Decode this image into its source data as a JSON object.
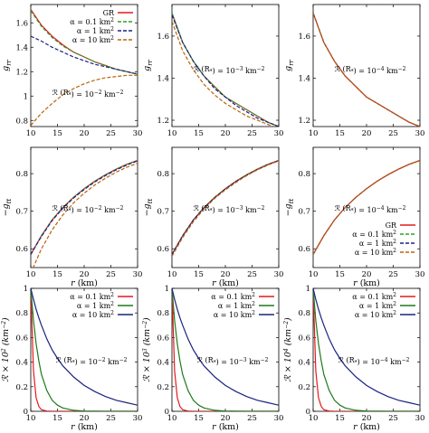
{
  "colors": {
    "GR": "#e41a1c",
    "alpha_0.1": "#2e9e2e",
    "alpha_1": "#1a237e",
    "alpha_10": "#b8650b",
    "bottom_0.1": "#e41a1c",
    "bottom_1": "#1b7a1b",
    "bottom_10": "#1a237e"
  },
  "chart_data": [
    {
      "type": "line",
      "row": 0,
      "col": 0,
      "xlabel": "",
      "ylabel": "g_rr",
      "xlim": [
        10,
        30
      ],
      "ylim": [
        0.75,
        1.75
      ],
      "xticks": [
        "10",
        "15",
        "20",
        "25",
        "30"
      ],
      "yticks": [
        {
          "v": 0.8,
          "l": "0.8"
        },
        {
          "v": 1.0,
          "l": "1"
        },
        {
          "v": 1.2,
          "l": "1.2"
        },
        {
          "v": 1.4,
          "l": "1.4"
        },
        {
          "v": 1.6,
          "l": "1.6"
        }
      ],
      "annotation": "R(R*) = 10^-2 km^-2",
      "legend": [
        "GR",
        "α = 0.1 km²",
        "α = 1 km²",
        "α = 10 km²"
      ],
      "legend_position": "top-right",
      "x": [
        10,
        12,
        14,
        16,
        18,
        20,
        22,
        24,
        26,
        28,
        30
      ],
      "series": [
        {
          "name": "GR",
          "style": "solid",
          "values": [
            1.71,
            1.58,
            1.49,
            1.42,
            1.36,
            1.32,
            1.28,
            1.25,
            1.22,
            1.2,
            1.18
          ]
        },
        {
          "name": "α = 0.1 km²",
          "style": "dashed",
          "values": [
            1.7,
            1.57,
            1.48,
            1.41,
            1.36,
            1.32,
            1.28,
            1.25,
            1.22,
            1.2,
            1.18
          ]
        },
        {
          "name": "α = 1 km²",
          "style": "dashed",
          "values": [
            1.49,
            1.45,
            1.4,
            1.36,
            1.32,
            1.29,
            1.26,
            1.24,
            1.22,
            1.2,
            1.18
          ]
        },
        {
          "name": "α = 10 km²",
          "style": "dashed",
          "values": [
            0.76,
            0.86,
            0.94,
            1.01,
            1.06,
            1.1,
            1.13,
            1.15,
            1.16,
            1.17,
            1.17
          ]
        }
      ]
    },
    {
      "type": "line",
      "row": 0,
      "col": 1,
      "xlabel": "",
      "ylabel": "g_rr",
      "xlim": [
        10,
        30
      ],
      "ylim": [
        1.17,
        1.75
      ],
      "xticks": [
        "10",
        "15",
        "20",
        "25",
        "30"
      ],
      "yticks": [
        {
          "v": 1.2,
          "l": "1.2"
        },
        {
          "v": 1.4,
          "l": "1.4"
        },
        {
          "v": 1.6,
          "l": "1.6"
        }
      ],
      "annotation": "R(R*) = 10^-3 km^-2",
      "x": [
        10,
        12,
        14,
        16,
        18,
        20,
        22,
        24,
        26,
        28,
        30
      ],
      "series": [
        {
          "name": "GR",
          "style": "solid",
          "values": [
            1.71,
            1.57,
            1.48,
            1.41,
            1.36,
            1.31,
            1.28,
            1.25,
            1.22,
            1.19,
            1.17
          ]
        },
        {
          "name": "α = 0.1 km²",
          "style": "dashed",
          "values": [
            1.71,
            1.57,
            1.48,
            1.41,
            1.36,
            1.31,
            1.28,
            1.25,
            1.22,
            1.19,
            1.17
          ]
        },
        {
          "name": "α = 1 km²",
          "style": "dashed",
          "values": [
            1.7,
            1.57,
            1.48,
            1.41,
            1.35,
            1.31,
            1.27,
            1.24,
            1.21,
            1.19,
            1.17
          ]
        },
        {
          "name": "α = 10 km²",
          "style": "dashed",
          "values": [
            1.67,
            1.53,
            1.44,
            1.37,
            1.32,
            1.28,
            1.25,
            1.22,
            1.2,
            1.18,
            1.16
          ]
        }
      ]
    },
    {
      "type": "line",
      "row": 0,
      "col": 2,
      "xlabel": "",
      "ylabel": "g_rr",
      "xlim": [
        10,
        30
      ],
      "ylim": [
        1.17,
        1.75
      ],
      "xticks": [
        "10",
        "15",
        "20",
        "25",
        "30"
      ],
      "yticks": [
        {
          "v": 1.2,
          "l": "1.2"
        },
        {
          "v": 1.4,
          "l": "1.4"
        },
        {
          "v": 1.6,
          "l": "1.6"
        }
      ],
      "annotation": "R(R*) = 10^-4 km^-2",
      "x": [
        10,
        12,
        14,
        16,
        18,
        20,
        22,
        24,
        26,
        28,
        30
      ],
      "series": [
        {
          "name": "GR",
          "style": "solid",
          "values": [
            1.71,
            1.57,
            1.48,
            1.41,
            1.36,
            1.31,
            1.28,
            1.25,
            1.22,
            1.19,
            1.17
          ]
        },
        {
          "name": "α = 0.1 km²",
          "style": "dashed",
          "values": [
            1.71,
            1.57,
            1.48,
            1.41,
            1.36,
            1.31,
            1.28,
            1.25,
            1.22,
            1.19,
            1.17
          ]
        },
        {
          "name": "α = 1 km²",
          "style": "dashed",
          "values": [
            1.71,
            1.57,
            1.48,
            1.41,
            1.36,
            1.31,
            1.28,
            1.25,
            1.22,
            1.19,
            1.17
          ]
        },
        {
          "name": "α = 10 km²",
          "style": "dashed",
          "values": [
            1.71,
            1.57,
            1.48,
            1.41,
            1.36,
            1.31,
            1.28,
            1.25,
            1.22,
            1.19,
            1.17
          ]
        }
      ]
    },
    {
      "type": "line",
      "row": 1,
      "col": 0,
      "xlabel": "r (km)",
      "ylabel": "−g_tt",
      "xlim": [
        10,
        30
      ],
      "ylim": [
        0.55,
        0.87
      ],
      "xticks": [
        "10",
        "15",
        "20",
        "25",
        "30"
      ],
      "yticks": [
        {
          "v": 0.6,
          "l": "0.6"
        },
        {
          "v": 0.7,
          "l": "0.7"
        },
        {
          "v": 0.8,
          "l": "0.8"
        }
      ],
      "annotation": "R(R*) = 10^-2 km^-2",
      "x": [
        10,
        12,
        14,
        16,
        18,
        20,
        22,
        24,
        26,
        28,
        30
      ],
      "series": [
        {
          "name": "GR",
          "style": "solid",
          "values": [
            0.585,
            0.635,
            0.677,
            0.71,
            0.737,
            0.76,
            0.78,
            0.797,
            0.812,
            0.825,
            0.835
          ]
        },
        {
          "name": "α = 0.1 km²",
          "style": "dashed",
          "values": [
            0.585,
            0.635,
            0.677,
            0.71,
            0.737,
            0.76,
            0.78,
            0.797,
            0.812,
            0.825,
            0.835
          ]
        },
        {
          "name": "α = 1 km²",
          "style": "dashed",
          "values": [
            0.585,
            0.633,
            0.675,
            0.708,
            0.735,
            0.758,
            0.778,
            0.795,
            0.81,
            0.823,
            0.834
          ]
        },
        {
          "name": "α = 10 km²",
          "style": "dashed",
          "values": [
            0.535,
            0.6,
            0.65,
            0.69,
            0.722,
            0.748,
            0.77,
            0.788,
            0.804,
            0.817,
            0.828
          ]
        }
      ]
    },
    {
      "type": "line",
      "row": 1,
      "col": 1,
      "xlabel": "r (km)",
      "ylabel": "−g_tt",
      "xlim": [
        10,
        30
      ],
      "ylim": [
        0.55,
        0.87
      ],
      "xticks": [
        "10",
        "15",
        "20",
        "25",
        "30"
      ],
      "yticks": [
        {
          "v": 0.6,
          "l": "0.6"
        },
        {
          "v": 0.7,
          "l": "0.7"
        },
        {
          "v": 0.8,
          "l": "0.8"
        }
      ],
      "annotation": "R(R*) = 10^-3 km^-2",
      "x": [
        10,
        12,
        14,
        16,
        18,
        20,
        22,
        24,
        26,
        28,
        30
      ],
      "series": [
        {
          "name": "GR",
          "style": "solid",
          "values": [
            0.585,
            0.635,
            0.677,
            0.71,
            0.737,
            0.76,
            0.78,
            0.797,
            0.812,
            0.825,
            0.835
          ]
        },
        {
          "name": "α = 0.1 km²",
          "style": "dashed",
          "values": [
            0.585,
            0.635,
            0.677,
            0.71,
            0.737,
            0.76,
            0.78,
            0.797,
            0.812,
            0.825,
            0.835
          ]
        },
        {
          "name": "α = 1 km²",
          "style": "dashed",
          "values": [
            0.585,
            0.634,
            0.676,
            0.709,
            0.736,
            0.759,
            0.779,
            0.796,
            0.811,
            0.824,
            0.835
          ]
        },
        {
          "name": "α = 10 km²",
          "style": "dashed",
          "values": [
            0.58,
            0.63,
            0.672,
            0.706,
            0.734,
            0.757,
            0.777,
            0.795,
            0.81,
            0.823,
            0.834
          ]
        }
      ]
    },
    {
      "type": "line",
      "row": 1,
      "col": 2,
      "xlabel": "r (km)",
      "ylabel": "−g_tt",
      "xlim": [
        10,
        30
      ],
      "ylim": [
        0.55,
        0.87
      ],
      "xticks": [
        "10",
        "15",
        "20",
        "25",
        "30"
      ],
      "yticks": [
        {
          "v": 0.6,
          "l": "0.6"
        },
        {
          "v": 0.7,
          "l": "0.7"
        },
        {
          "v": 0.8,
          "l": "0.8"
        }
      ],
      "annotation": "R(R*) = 10^-4 km^-2",
      "legend": [
        "GR",
        "α = 0.1 km²",
        "α = 1 km²",
        "α = 10 km²"
      ],
      "legend_position": "bottom-right",
      "x": [
        10,
        12,
        14,
        16,
        18,
        20,
        22,
        24,
        26,
        28,
        30
      ],
      "series": [
        {
          "name": "GR",
          "style": "solid",
          "values": [
            0.585,
            0.635,
            0.677,
            0.71,
            0.737,
            0.76,
            0.78,
            0.797,
            0.812,
            0.825,
            0.835
          ]
        },
        {
          "name": "α = 0.1 km²",
          "style": "dashed",
          "values": [
            0.585,
            0.635,
            0.677,
            0.71,
            0.737,
            0.76,
            0.78,
            0.797,
            0.812,
            0.825,
            0.835
          ]
        },
        {
          "name": "α = 1 km²",
          "style": "dashed",
          "values": [
            0.585,
            0.635,
            0.677,
            0.71,
            0.737,
            0.76,
            0.78,
            0.797,
            0.812,
            0.825,
            0.835
          ]
        },
        {
          "name": "α = 10 km²",
          "style": "dashed",
          "values": [
            0.585,
            0.635,
            0.677,
            0.71,
            0.737,
            0.76,
            0.78,
            0.797,
            0.812,
            0.825,
            0.835
          ]
        }
      ]
    },
    {
      "type": "line",
      "row": 2,
      "col": 0,
      "xlabel": "r (km)",
      "ylabel": "R × 10^2 (km^-2)",
      "xlim": [
        10,
        30
      ],
      "ylim": [
        0,
        1
      ],
      "xticks": [
        "10",
        "15",
        "20",
        "25",
        "30"
      ],
      "yticks": [
        {
          "v": 0,
          "l": "0"
        },
        {
          "v": 0.2,
          "l": "0.2"
        },
        {
          "v": 0.4,
          "l": "0.4"
        },
        {
          "v": 0.6,
          "l": "0.6"
        },
        {
          "v": 0.8,
          "l": "0.8"
        },
        {
          "v": 1.0,
          "l": "1"
        }
      ],
      "annotation": "R(R*) = 10^-2 km^-2",
      "legend": [
        "α = 0.1 km²",
        "α = 1 km²",
        "α = 10 km²"
      ],
      "legend_position": "top-right",
      "x": [
        10,
        10.5,
        11,
        11.5,
        12,
        13,
        14,
        15,
        16,
        18,
        20,
        22,
        24,
        26,
        28,
        30
      ],
      "series": [
        {
          "name": "α = 0.1 km²",
          "style": "solid",
          "values": [
            1.0,
            0.33,
            0.11,
            0.04,
            0.013,
            0.002,
            0,
            0,
            0,
            0,
            0,
            0,
            0,
            0,
            0,
            0
          ]
        },
        {
          "name": "α = 1 km²",
          "style": "solid",
          "values": [
            1.0,
            0.74,
            0.55,
            0.41,
            0.3,
            0.17,
            0.09,
            0.05,
            0.027,
            0.008,
            0.002,
            0.001,
            0,
            0,
            0,
            0
          ]
        },
        {
          "name": "α = 10 km²",
          "style": "solid",
          "values": [
            1.0,
            0.91,
            0.83,
            0.76,
            0.7,
            0.59,
            0.5,
            0.43,
            0.37,
            0.28,
            0.21,
            0.16,
            0.12,
            0.09,
            0.07,
            0.05
          ]
        }
      ]
    },
    {
      "type": "line",
      "row": 2,
      "col": 1,
      "xlabel": "r (km)",
      "ylabel": "R × 10^3 (km^-2)",
      "xlim": [
        10,
        30
      ],
      "ylim": [
        0,
        1
      ],
      "xticks": [
        "10",
        "15",
        "20",
        "25",
        "30"
      ],
      "yticks": [
        {
          "v": 0,
          "l": "0"
        },
        {
          "v": 0.2,
          "l": "0.2"
        },
        {
          "v": 0.4,
          "l": "0.4"
        },
        {
          "v": 0.6,
          "l": "0.6"
        },
        {
          "v": 0.8,
          "l": "0.8"
        },
        {
          "v": 1.0,
          "l": "1"
        }
      ],
      "annotation": "R(R*) = 10^-3 km^-2",
      "legend": [
        "α = 0.1 km²",
        "α = 1 km²",
        "α = 10 km²"
      ],
      "legend_position": "top-right",
      "x": [
        10,
        10.5,
        11,
        11.5,
        12,
        13,
        14,
        15,
        16,
        18,
        20,
        22,
        24,
        26,
        28,
        30
      ],
      "series": [
        {
          "name": "α = 0.1 km²",
          "style": "solid",
          "values": [
            1.0,
            0.33,
            0.11,
            0.04,
            0.013,
            0.002,
            0,
            0,
            0,
            0,
            0,
            0,
            0,
            0,
            0,
            0
          ]
        },
        {
          "name": "α = 1 km²",
          "style": "solid",
          "values": [
            1.0,
            0.74,
            0.55,
            0.41,
            0.3,
            0.17,
            0.09,
            0.05,
            0.027,
            0.008,
            0.002,
            0.001,
            0,
            0,
            0,
            0
          ]
        },
        {
          "name": "α = 10 km²",
          "style": "solid",
          "values": [
            1.0,
            0.91,
            0.83,
            0.76,
            0.7,
            0.59,
            0.5,
            0.43,
            0.37,
            0.28,
            0.21,
            0.16,
            0.12,
            0.09,
            0.07,
            0.05
          ]
        }
      ]
    },
    {
      "type": "line",
      "row": 2,
      "col": 2,
      "xlabel": "r (km)",
      "ylabel": "R × 10^4 (km^-2)",
      "xlim": [
        10,
        30
      ],
      "ylim": [
        0,
        1
      ],
      "xticks": [
        "10",
        "15",
        "20",
        "25",
        "30"
      ],
      "yticks": [
        {
          "v": 0,
          "l": "0"
        },
        {
          "v": 0.2,
          "l": "0.2"
        },
        {
          "v": 0.4,
          "l": "0.4"
        },
        {
          "v": 0.6,
          "l": "0.6"
        },
        {
          "v": 0.8,
          "l": "0.8"
        },
        {
          "v": 1.0,
          "l": "1"
        }
      ],
      "annotation": "R(R*) = 10^-4 km^-2",
      "legend": [
        "α = 0.1 km²",
        "α = 1 km²",
        "α = 10 km²"
      ],
      "legend_position": "top-right",
      "x": [
        10,
        10.5,
        11,
        11.5,
        12,
        13,
        14,
        15,
        16,
        18,
        20,
        22,
        24,
        26,
        28,
        30
      ],
      "series": [
        {
          "name": "α = 0.1 km²",
          "style": "solid",
          "values": [
            1.0,
            0.33,
            0.11,
            0.04,
            0.013,
            0.002,
            0,
            0,
            0,
            0,
            0,
            0,
            0,
            0,
            0,
            0
          ]
        },
        {
          "name": "α = 1 km²",
          "style": "solid",
          "values": [
            1.0,
            0.74,
            0.55,
            0.41,
            0.3,
            0.17,
            0.09,
            0.05,
            0.027,
            0.008,
            0.002,
            0.001,
            0,
            0,
            0,
            0
          ]
        },
        {
          "name": "α = 10 km²",
          "style": "solid",
          "values": [
            1.0,
            0.91,
            0.83,
            0.76,
            0.7,
            0.59,
            0.5,
            0.43,
            0.37,
            0.28,
            0.21,
            0.16,
            0.12,
            0.09,
            0.07,
            0.05
          ]
        }
      ]
    }
  ]
}
